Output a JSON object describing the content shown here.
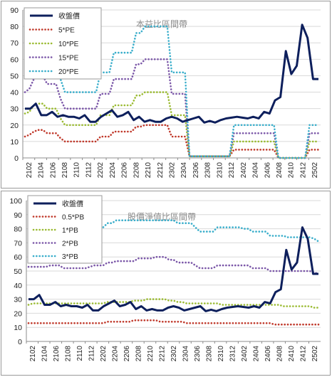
{
  "chart_data": [
    {
      "type": "line",
      "title": "本益比區間帶",
      "ylim": [
        0,
        90
      ],
      "yticks": [
        0,
        10,
        20,
        30,
        40,
        50,
        60,
        70,
        80,
        90
      ],
      "xticks": [
        "2102",
        "2104",
        "2106",
        "2108",
        "2110",
        "2112",
        "2202",
        "2204",
        "2206",
        "2208",
        "2210",
        "2212",
        "2302",
        "2304",
        "2306",
        "2308",
        "2310",
        "2312",
        "2402",
        "2404",
        "2406",
        "2408",
        "2410",
        "2412",
        "2502"
      ],
      "grid": true,
      "legend": "top-left",
      "series": [
        {
          "name": "收盤價",
          "color": "#0d1f5c",
          "style": "solid",
          "values": [
            30,
            30,
            33,
            26,
            26,
            28,
            25,
            26,
            25,
            25,
            24,
            26,
            22,
            22,
            25,
            27,
            29,
            25,
            26,
            28,
            23,
            25,
            22,
            23,
            22,
            22,
            24,
            25,
            24,
            22,
            23,
            24,
            25,
            21.5,
            22.5,
            21.5,
            23,
            24,
            24.5,
            25,
            24.5,
            24,
            25,
            24,
            28,
            27,
            35,
            37,
            65,
            51,
            56,
            81,
            73,
            48,
            48
          ]
        },
        {
          "name": "5*PE",
          "color": "#c0392b",
          "style": "dotted",
          "values": [
            13,
            14,
            16,
            17,
            17,
            15,
            15,
            15,
            12,
            10,
            10,
            10,
            10,
            10,
            10,
            10,
            10,
            13,
            13,
            13,
            16,
            16,
            16,
            16,
            16,
            19,
            19,
            20,
            20,
            20,
            20,
            20,
            20,
            13,
            13,
            13,
            13,
            1,
            1,
            1,
            1,
            1,
            1,
            1,
            1,
            1,
            1,
            5,
            5,
            5,
            5,
            5,
            5,
            5,
            5,
            5,
            5,
            0,
            0,
            0,
            0,
            0,
            0,
            0,
            5,
            5,
            5
          ]
        },
        {
          "name": "10*PE",
          "color": "#9bbb33",
          "style": "dotted",
          "values": [
            27,
            28,
            32,
            33,
            33,
            30,
            30,
            30,
            24,
            20,
            20,
            20,
            20,
            20,
            20,
            20,
            20,
            26,
            26,
            26,
            32,
            32,
            32,
            32,
            32,
            38,
            38,
            40,
            40,
            40,
            40,
            40,
            40,
            26,
            26,
            26,
            26,
            1,
            1,
            1,
            1,
            1,
            1,
            1,
            1,
            1,
            1,
            10,
            10,
            10,
            10,
            10,
            10,
            10,
            10,
            10,
            10,
            0,
            0,
            0,
            0,
            0,
            0,
            0,
            10,
            10,
            10
          ]
        },
        {
          "name": "15*PE",
          "color": "#7b57a8",
          "style": "dotted",
          "values": [
            40,
            42,
            48,
            50,
            50,
            45,
            45,
            45,
            36,
            30,
            30,
            30,
            30,
            30,
            30,
            30,
            30,
            39,
            39,
            39,
            48,
            48,
            48,
            48,
            48,
            57,
            57,
            60,
            60,
            60,
            60,
            60,
            60,
            39,
            39,
            39,
            39,
            1,
            1,
            1,
            1,
            1,
            1,
            1,
            1,
            1,
            1,
            15,
            15,
            15,
            15,
            15,
            15,
            15,
            15,
            15,
            15,
            0,
            0,
            0,
            0,
            0,
            0,
            0,
            15,
            15,
            15
          ]
        },
        {
          "name": "20*PE",
          "color": "#3aaecb",
          "style": "dotted",
          "values": [
            54,
            56,
            64,
            66,
            66,
            60,
            60,
            60,
            48,
            40,
            40,
            40,
            40,
            40,
            40,
            40,
            40,
            52,
            52,
            52,
            64,
            64,
            64,
            64,
            64,
            76,
            76,
            80,
            80,
            80,
            80,
            80,
            80,
            52,
            52,
            52,
            52,
            1,
            1,
            1,
            1,
            1,
            1,
            1,
            1,
            1,
            1,
            20,
            20,
            20,
            20,
            20,
            20,
            20,
            20,
            20,
            20,
            0,
            0,
            0,
            0,
            0,
            0,
            0,
            20,
            20,
            20
          ]
        }
      ]
    },
    {
      "type": "line",
      "title": "股價淨值比區間帶",
      "ylim": [
        0,
        100
      ],
      "yticks": [
        0,
        10,
        20,
        30,
        40,
        50,
        60,
        70,
        80,
        90,
        100
      ],
      "xticks": [
        "2102",
        "2104",
        "2106",
        "2108",
        "2110",
        "2112",
        "2202",
        "2204",
        "2206",
        "2208",
        "2210",
        "2212",
        "2302",
        "2304",
        "2306",
        "2308",
        "2310",
        "2312",
        "2402",
        "2404",
        "2406",
        "2408",
        "2410",
        "2412",
        "2502"
      ],
      "grid": true,
      "legend": "top-left",
      "series": [
        {
          "name": "收盤價",
          "color": "#0d1f5c",
          "style": "solid",
          "values": [
            30,
            30,
            33,
            26,
            26,
            28,
            25,
            26,
            25,
            25,
            24,
            26,
            22,
            22,
            25,
            27,
            29,
            25,
            26,
            28,
            23,
            25,
            22,
            23,
            22,
            22,
            24,
            25,
            24,
            22,
            23,
            24,
            25,
            21.5,
            22.5,
            21.5,
            23,
            24,
            24.5,
            25,
            24.5,
            24,
            25,
            24,
            28,
            27,
            35,
            37,
            65,
            51,
            56,
            81,
            73,
            48,
            48
          ]
        },
        {
          "name": "0.5*PB",
          "color": "#c0392b",
          "style": "dotted",
          "values": [
            13,
            13,
            13,
            13,
            13,
            13,
            13,
            13,
            13,
            13,
            13,
            13,
            13,
            13,
            13,
            13,
            13,
            13,
            14,
            14,
            14,
            14,
            14,
            14,
            15,
            15,
            15,
            15,
            15,
            15,
            14,
            14,
            14,
            14,
            14,
            14,
            13,
            13,
            13,
            13,
            13,
            13,
            13,
            13,
            13,
            13,
            13,
            13,
            13,
            13,
            13,
            13,
            13,
            13,
            13,
            13,
            12,
            12,
            12,
            12,
            12,
            12,
            12,
            12,
            12,
            12,
            12
          ]
        },
        {
          "name": "1*PB",
          "color": "#9bbb33",
          "style": "dotted",
          "values": [
            26,
            27,
            27,
            27,
            27,
            27,
            27,
            27,
            27,
            27,
            27,
            27,
            27,
            27,
            27,
            27,
            27,
            27,
            28,
            28,
            28,
            28,
            28,
            28,
            29,
            29,
            29,
            30,
            30,
            30,
            30,
            30,
            29,
            29,
            28,
            28,
            27,
            27,
            27,
            27,
            27,
            27,
            27,
            27,
            26,
            26,
            26,
            26,
            26,
            26,
            26,
            26,
            26,
            26,
            26,
            26,
            26,
            26,
            25,
            25,
            25,
            25,
            25,
            25,
            25,
            24,
            24
          ]
        },
        {
          "name": "2*PB",
          "color": "#7b57a8",
          "style": "dotted",
          "values": [
            53,
            53,
            53,
            53,
            53,
            54,
            54,
            54,
            52,
            52,
            52,
            52,
            52,
            52,
            53,
            54,
            54,
            54,
            56,
            56,
            57,
            57,
            57,
            57,
            57,
            59,
            59,
            59,
            59,
            60,
            60,
            60,
            58,
            58,
            56,
            56,
            56,
            56,
            54,
            52,
            52,
            52,
            52,
            54,
            54,
            54,
            54,
            54,
            54,
            54,
            54,
            52,
            52,
            52,
            52,
            50,
            50,
            50,
            50,
            50,
            50,
            50,
            50,
            50,
            50,
            49,
            48
          ]
        },
        {
          "name": "3*PB",
          "color": "#3aaecb",
          "style": "dotted",
          "values": [
            79,
            80,
            80,
            80,
            80,
            81,
            81,
            81,
            79,
            79,
            79,
            79,
            79,
            79,
            80,
            81,
            81,
            81,
            84,
            84,
            86,
            86,
            86,
            86,
            86,
            86,
            86,
            86,
            86,
            86,
            86,
            86,
            86,
            86,
            84,
            84,
            84,
            84,
            81,
            78,
            78,
            78,
            78,
            81,
            81,
            81,
            81,
            81,
            81,
            80,
            80,
            78,
            78,
            78,
            78,
            75,
            75,
            75,
            75,
            74,
            74,
            74,
            74,
            74,
            74,
            73,
            71
          ]
        }
      ]
    }
  ]
}
